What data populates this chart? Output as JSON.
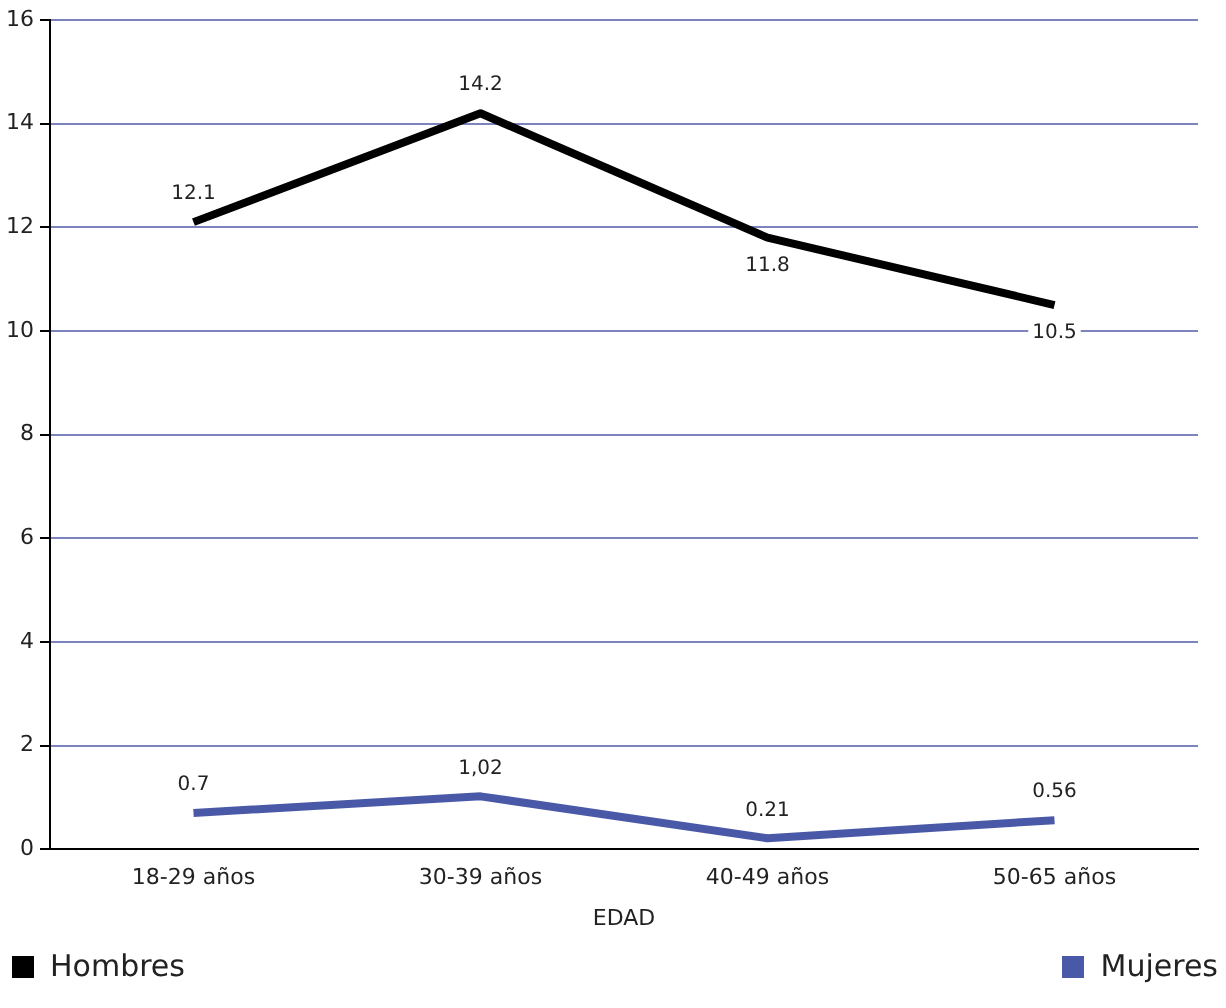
{
  "chart_data": {
    "type": "line",
    "xlabel": "EDAD",
    "categories": [
      "18-29 años",
      "30-39 años",
      "40-49 años",
      "50-65 años"
    ],
    "series": [
      {
        "name": "Hombres",
        "color": "#000000",
        "values": [
          12.1,
          14.2,
          11.8,
          10.5
        ],
        "value_labels": [
          "12.1",
          "14.2",
          "11.8",
          "10.5"
        ]
      },
      {
        "name": "Mujeres",
        "color": "#4a59a7",
        "values": [
          0.7,
          1.02,
          0.21,
          0.56
        ],
        "value_labels": [
          "0.7",
          "1,02",
          "0.21",
          "0.56"
        ]
      }
    ],
    "ylim": [
      0,
      16
    ],
    "yticks": [
      0,
      2,
      4,
      6,
      8,
      10,
      12,
      14,
      16
    ],
    "grid": "y",
    "legend": "bottom",
    "marker": "none",
    "line_style": "solid"
  }
}
